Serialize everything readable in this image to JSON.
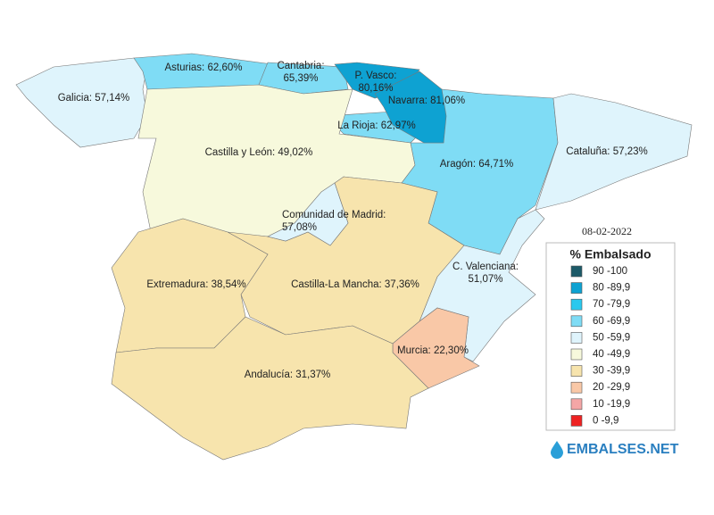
{
  "date": "08-02-2022",
  "regions": [
    {
      "name": "Galicia:",
      "value": "57,14%",
      "color": "#dff4fc"
    },
    {
      "name": "Asturias:",
      "value": "62,60%",
      "color": "#7fdcf5"
    },
    {
      "name": "Cantabria:",
      "value": "65,39%",
      "color": "#7fdcf5"
    },
    {
      "name": "P. Vasco:",
      "value": "80,16%",
      "color": "#0ea2d2"
    },
    {
      "name": "Navarra:",
      "value": "81,06%",
      "color": "#0ea2d2"
    },
    {
      "name": "La Rioja:",
      "value": "62,97%",
      "color": "#7fdcf5"
    },
    {
      "name": "Castilla y León:",
      "value": "49,02%",
      "color": "#f7f9dc"
    },
    {
      "name": "Aragón:",
      "value": "64,71%",
      "color": "#7fdcf5"
    },
    {
      "name": "Cataluña:",
      "value": "57,23%",
      "color": "#dff4fc"
    },
    {
      "name": "Comunidad de Madrid:",
      "value": "57,08%",
      "color": "#dff4fc"
    },
    {
      "name": "Castilla-La Mancha:",
      "value": "37,36%",
      "color": "#f7e4ad"
    },
    {
      "name": "Extremadura:",
      "value": "38,54%",
      "color": "#f7e4ad"
    },
    {
      "name": "C. Valenciana:",
      "value": "51,07%",
      "color": "#dff4fc"
    },
    {
      "name": "Murcia:",
      "value": "22,30%",
      "color": "#f9c8a7"
    },
    {
      "name": "Andalucía:",
      "value": "31,37%",
      "color": "#f7e4ad"
    }
  ],
  "legend": {
    "title": "% Embalsado",
    "items": [
      {
        "label": "90 -100",
        "color": "#1c5a68"
      },
      {
        "label": "80 -89,9",
        "color": "#0ea2d2"
      },
      {
        "label": "70 -79,9",
        "color": "#2ac8ee"
      },
      {
        "label": "60 -69,9",
        "color": "#7fdcf5"
      },
      {
        "label": "50 -59,9",
        "color": "#dff4fc"
      },
      {
        "label": "40 -49,9",
        "color": "#f7f9dc"
      },
      {
        "label": "30 -39,9",
        "color": "#f7e4ad"
      },
      {
        "label": "20 -29,9",
        "color": "#f9c8a7"
      },
      {
        "label": "10 -19,9",
        "color": "#f4a6a6"
      },
      {
        "label": "0 -9,9",
        "color": "#ee2222"
      }
    ]
  },
  "logo": "EMBALSES.NET"
}
